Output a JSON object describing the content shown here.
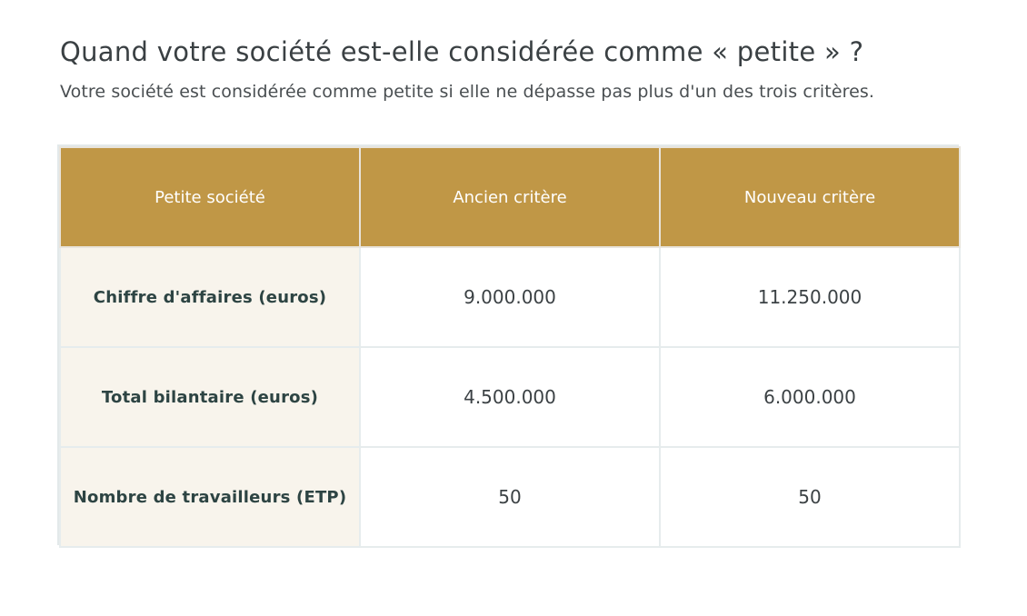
{
  "header": {
    "title": "Quand votre société est-elle considérée comme « petite » ?",
    "subtitle": "Votre société est considérée comme petite si elle ne dépasse pas plus d'un des trois critères."
  },
  "table": {
    "columns": [
      "Petite société",
      "Ancien critère",
      "Nouveau critère"
    ],
    "rows": [
      {
        "label": "Chiffre d'affaires (euros)",
        "old": "9.000.000",
        "new": "11.250.000"
      },
      {
        "label": "Total bilantaire (euros)",
        "old": "4.500.000",
        "new": "6.000.000"
      },
      {
        "label": "Nombre de travailleurs (ETP)",
        "old": "50",
        "new": "50"
      }
    ]
  },
  "colors": {
    "header_bg": "#c09746",
    "label_bg": "#f8f4ec",
    "border": "#e6eced"
  }
}
